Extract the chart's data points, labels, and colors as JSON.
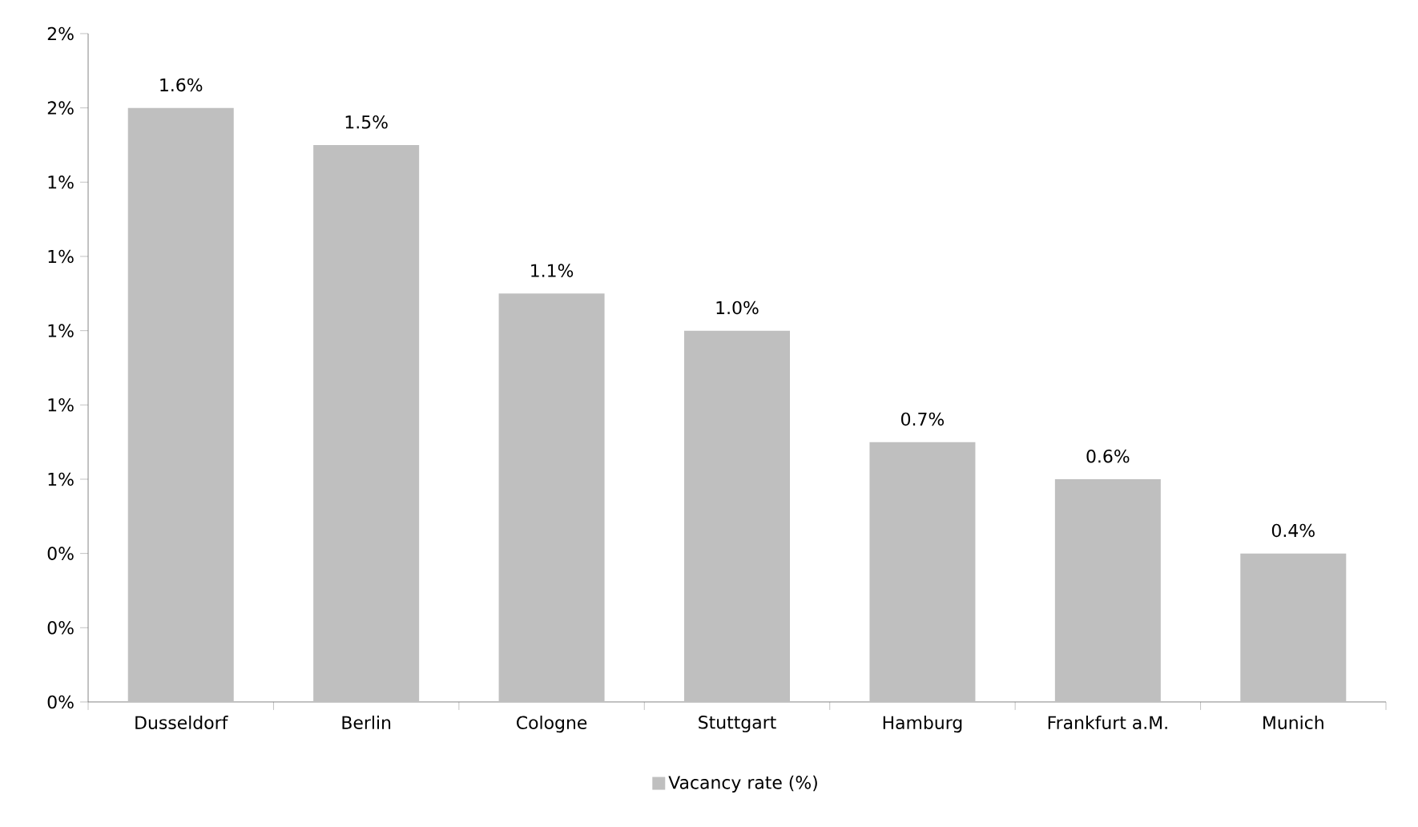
{
  "chart_data": {
    "type": "bar",
    "categories": [
      "Dusseldorf",
      "Berlin",
      "Cologne",
      "Stuttgart",
      "Hamburg",
      "Frankfurt a.M.",
      "Munich"
    ],
    "series": [
      {
        "name": "Vacancy rate (%)",
        "color": "#bfbfbf",
        "values": [
          1.6,
          1.5,
          1.1,
          1.0,
          0.7,
          0.6,
          0.4
        ]
      }
    ],
    "value_labels": [
      "1.6%",
      "1.5%",
      "1.1%",
      "1.0%",
      "0.7%",
      "0.6%",
      "0.4%"
    ],
    "ylim": [
      0,
      1.8
    ],
    "yticks": [
      {
        "value": 0,
        "label": "0%"
      },
      {
        "value": 0.2,
        "label": "0%"
      },
      {
        "value": 0.4,
        "label": "0%"
      },
      {
        "value": 0.6,
        "label": "1%"
      },
      {
        "value": 0.8,
        "label": "1%"
      },
      {
        "value": 1.0,
        "label": "1%"
      },
      {
        "value": 1.2,
        "label": "1%"
      },
      {
        "value": 1.4,
        "label": "1%"
      },
      {
        "value": 1.6,
        "label": "2%"
      },
      {
        "value": 1.8,
        "label": "2%"
      }
    ],
    "grid": false,
    "legend": "bottom"
  }
}
